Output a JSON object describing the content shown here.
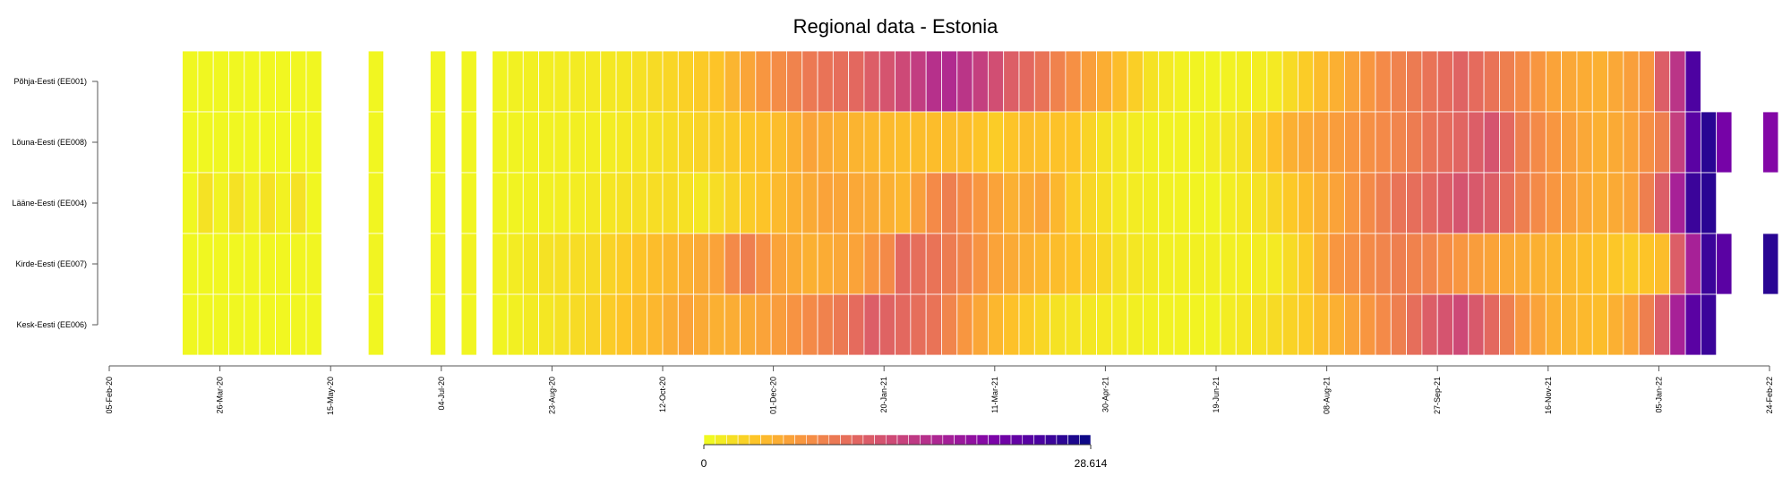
{
  "chart_data": {
    "type": "heatmap",
    "title": "Regional data - Estonia",
    "xlabel": "",
    "ylabel": "",
    "rows": [
      "Põhja-Eesti (EE001)",
      "Lõuna-Eesti (EE008)",
      "Lääne-Eesti (EE004)",
      "Kirde-Eesti (EE007)",
      "Kesk-Eesti (EE006)"
    ],
    "x_ticks": [
      "05-Feb-20",
      "26-Mar-20",
      "15-May-20",
      "04-Jul-20",
      "23-Aug-20",
      "12-Oct-20",
      "01-Dec-20",
      "20-Jan-21",
      "11-Mar-21",
      "30-Apr-21",
      "19-Jun-21",
      "08-Aug-21",
      "27-Sep-21",
      "16-Nov-21",
      "05-Jan-22",
      "24-Feb-22"
    ],
    "xlim": [
      "2020-02-05",
      "2022-02-24"
    ],
    "first_week": "2020-03-09",
    "weeks": 100,
    "scale": {
      "min": 0,
      "max": 28.614,
      "min_label": "0",
      "max_label": "28.614",
      "palette": "plasma-reversed"
    },
    "missing_weeks": [
      9,
      10,
      11,
      13,
      14,
      15,
      17,
      19
    ],
    "keyframes": {
      "Põhja-Eesti (EE001)": [
        [
          0,
          0.1
        ],
        [
          20,
          0.3
        ],
        [
          21,
          0.5
        ],
        [
          28,
          1.2
        ],
        [
          34,
          3.5
        ],
        [
          37,
          7
        ],
        [
          40,
          9.5
        ],
        [
          43,
          11
        ],
        [
          46,
          14
        ],
        [
          48,
          16.5
        ],
        [
          49,
          17
        ],
        [
          51,
          15
        ],
        [
          53,
          12
        ],
        [
          55,
          10
        ],
        [
          57,
          7.5
        ],
        [
          60,
          4
        ],
        [
          62,
          1.5
        ],
        [
          64,
          0.5
        ],
        [
          66,
          0.3
        ],
        [
          70,
          1
        ],
        [
          74,
          5
        ],
        [
          77,
          8
        ],
        [
          80,
          10
        ],
        [
          82,
          11.5
        ],
        [
          84,
          10
        ],
        [
          86,
          8
        ],
        [
          88,
          6
        ],
        [
          91,
          5
        ],
        [
          94,
          7
        ],
        [
          95,
          12
        ],
        [
          96,
          16
        ],
        [
          97,
          25
        ]
      ],
      "Lõuna-Eesti (EE008)": [
        [
          0,
          0.1
        ],
        [
          20,
          0.3
        ],
        [
          27,
          0.8
        ],
        [
          30,
          1.5
        ],
        [
          33,
          2.5
        ],
        [
          38,
          4
        ],
        [
          40,
          6
        ],
        [
          42,
          5
        ],
        [
          46,
          4
        ],
        [
          50,
          4
        ],
        [
          52,
          3
        ],
        [
          54,
          4
        ],
        [
          57,
          3.5
        ],
        [
          59,
          1.5
        ],
        [
          62,
          0.5
        ],
        [
          65,
          0.4
        ],
        [
          68,
          1.5
        ],
        [
          71,
          5
        ],
        [
          75,
          7
        ],
        [
          78,
          8.5
        ],
        [
          80,
          10
        ],
        [
          83,
          12
        ],
        [
          84,
          13
        ],
        [
          86,
          9
        ],
        [
          88,
          7
        ],
        [
          91,
          5
        ],
        [
          93,
          6
        ],
        [
          95,
          9
        ],
        [
          96,
          15
        ],
        [
          97,
          24
        ],
        [
          98,
          27
        ],
        [
          99,
          22
        ]
      ],
      "Lääne-Eesti (EE004)": [
        [
          0,
          0.1
        ],
        [
          1,
          1.5
        ],
        [
          2,
          0.4
        ],
        [
          3,
          1.5
        ],
        [
          4,
          0.5
        ],
        [
          5,
          1.5
        ],
        [
          6,
          0.5
        ],
        [
          7,
          1.5
        ],
        [
          8,
          0.2
        ],
        [
          20,
          0.3
        ],
        [
          25,
          0.8
        ],
        [
          28,
          1.5
        ],
        [
          31,
          2
        ],
        [
          33,
          1.2
        ],
        [
          35,
          2.5
        ],
        [
          37,
          3.5
        ],
        [
          39,
          5
        ],
        [
          41,
          6
        ],
        [
          44,
          5.5
        ],
        [
          46,
          4.5
        ],
        [
          48,
          8
        ],
        [
          49,
          9
        ],
        [
          51,
          7
        ],
        [
          53,
          5
        ],
        [
          55,
          6
        ],
        [
          57,
          3
        ],
        [
          60,
          1
        ],
        [
          63,
          0.5
        ],
        [
          66,
          0.3
        ],
        [
          69,
          1.5
        ],
        [
          72,
          4
        ],
        [
          75,
          7
        ],
        [
          78,
          10
        ],
        [
          80,
          11
        ],
        [
          82,
          13
        ],
        [
          84,
          12
        ],
        [
          86,
          9
        ],
        [
          88,
          7
        ],
        [
          91,
          5
        ],
        [
          93,
          6
        ],
        [
          95,
          12
        ],
        [
          96,
          18
        ],
        [
          97,
          26
        ],
        [
          98,
          27
        ]
      ],
      "Kirde-Eesti (EE007)": [
        [
          0,
          0.1
        ],
        [
          20,
          0.5
        ],
        [
          23,
          1.5
        ],
        [
          26,
          2
        ],
        [
          28,
          3
        ],
        [
          30,
          4
        ],
        [
          32,
          5
        ],
        [
          34,
          6
        ],
        [
          35,
          8
        ],
        [
          36,
          9
        ],
        [
          38,
          6
        ],
        [
          40,
          5
        ],
        [
          43,
          6
        ],
        [
          45,
          8
        ],
        [
          46,
          11
        ],
        [
          48,
          10
        ],
        [
          50,
          8.5
        ],
        [
          52,
          6
        ],
        [
          54,
          5
        ],
        [
          56,
          4
        ],
        [
          58,
          3
        ],
        [
          60,
          1.5
        ],
        [
          63,
          0.6
        ],
        [
          67,
          0.6
        ],
        [
          70,
          1
        ],
        [
          72,
          3
        ],
        [
          74,
          7
        ],
        [
          76,
          8
        ],
        [
          78,
          9
        ],
        [
          80,
          8.5
        ],
        [
          82,
          7
        ],
        [
          84,
          6
        ],
        [
          87,
          5
        ],
        [
          90,
          4
        ],
        [
          93,
          3
        ],
        [
          95,
          4
        ],
        [
          96,
          12
        ],
        [
          97,
          18
        ],
        [
          98,
          26
        ],
        [
          99,
          24
        ]
      ],
      "Kesk-Eesti (EE006)": [
        [
          0,
          0.1
        ],
        [
          20,
          0.3
        ],
        [
          24,
          1.5
        ],
        [
          26,
          2.5
        ],
        [
          28,
          3.5
        ],
        [
          30,
          4.5
        ],
        [
          32,
          6
        ],
        [
          34,
          5
        ],
        [
          36,
          5.5
        ],
        [
          38,
          6.5
        ],
        [
          40,
          8
        ],
        [
          42,
          9.5
        ],
        [
          44,
          12
        ],
        [
          46,
          11
        ],
        [
          48,
          10
        ],
        [
          50,
          7
        ],
        [
          52,
          4.5
        ],
        [
          54,
          3
        ],
        [
          56,
          1.5
        ],
        [
          59,
          1
        ],
        [
          62,
          0.5
        ],
        [
          66,
          0.4
        ],
        [
          69,
          1.5
        ],
        [
          72,
          3
        ],
        [
          75,
          6
        ],
        [
          78,
          9
        ],
        [
          80,
          12
        ],
        [
          82,
          14
        ],
        [
          84,
          11
        ],
        [
          86,
          7
        ],
        [
          88,
          5
        ],
        [
          91,
          4
        ],
        [
          93,
          6
        ],
        [
          95,
          12
        ],
        [
          96,
          18
        ],
        [
          97,
          24
        ],
        [
          98,
          26
        ]
      ]
    },
    "row_extends_to": {
      "Põhja-Eesti (EE001)": 97,
      "Lõuna-Eesti (EE008)": 99,
      "Lääne-Eesti (EE004)": 98,
      "Kirde-Eesti (EE007)": 99,
      "Kesk-Eesti (EE006)": 98
    },
    "row_gap_after": {
      "Lõuna-Eesti (EE008)": [
        100,
        102
      ],
      "Kirde-Eesti (EE007)": [
        100,
        102
      ]
    },
    "row_late_value": {
      "Lõuna-Eesti (EE008)": 21,
      "Kirde-Eesti (EE007)": 27
    }
  }
}
